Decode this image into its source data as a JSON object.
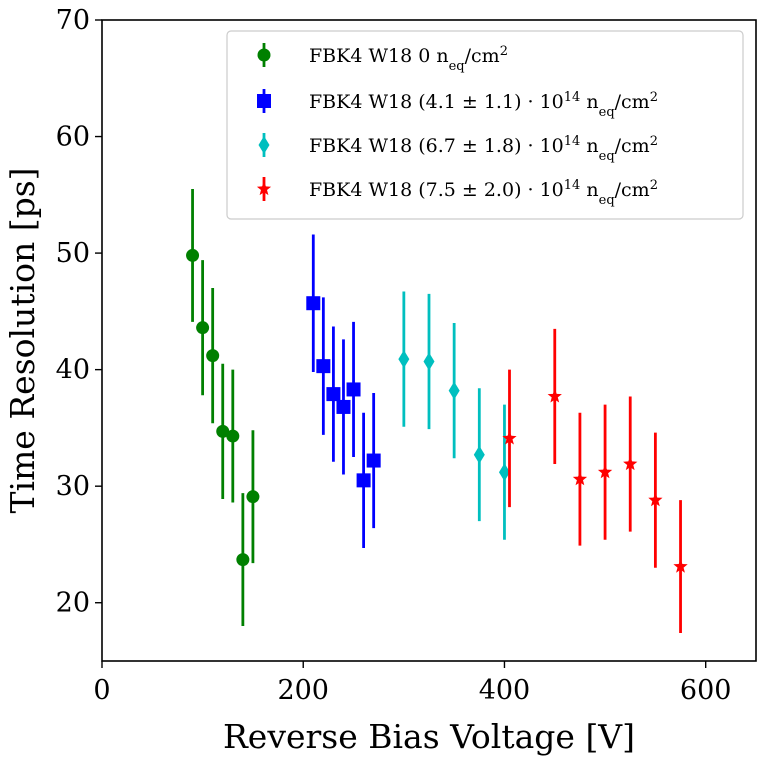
{
  "chart_data": {
    "type": "scatter",
    "title": "",
    "xlabel": "Reverse Bias Voltage [V]",
    "ylabel": "Time Resolution [ps]",
    "xlim": [
      0,
      650
    ],
    "ylim": [
      15,
      70
    ],
    "xticks": [
      0,
      200,
      400,
      600
    ],
    "yticks": [
      20,
      30,
      40,
      50,
      60,
      70
    ],
    "xtick_labels": [
      "0",
      "200",
      "400",
      "600"
    ],
    "ytick_labels": [
      "20",
      "30",
      "40",
      "50",
      "60",
      "70"
    ],
    "grid": false,
    "legend_position": "top-right",
    "series": [
      {
        "name": "FBK4 W18 0 neq/cm2",
        "legend_prefix": "FBK4 W18 ",
        "legend_math": "0",
        "legend_unit": "n",
        "legend_sub": "eq",
        "legend_unit2": "/cm",
        "legend_sup": "2",
        "marker": "circle",
        "color": "#008000",
        "x": [
          90,
          100,
          110,
          120,
          130,
          140,
          150
        ],
        "y": [
          49.8,
          43.6,
          41.2,
          34.7,
          34.3,
          23.7,
          29.1
        ],
        "yerr": [
          5.7,
          5.8,
          5.8,
          5.8,
          5.7,
          5.7,
          5.7
        ]
      },
      {
        "name": "FBK4 W18 (4.1 ± 1.1)·10^14 neq/cm2",
        "legend_prefix": "FBK4 W18 ",
        "legend_math": "(4.1 ± 1.1) · 10",
        "legend_exp": "14",
        "legend_unit": "n",
        "legend_sub": "eq",
        "legend_unit2": "/cm",
        "legend_sup": "2",
        "marker": "square",
        "color": "#0000ff",
        "x": [
          210,
          220,
          230,
          240,
          250,
          260,
          270
        ],
        "y": [
          45.7,
          40.3,
          37.9,
          36.8,
          38.3,
          30.5,
          32.2
        ],
        "yerr": [
          5.9,
          5.9,
          5.8,
          5.8,
          5.8,
          5.8,
          5.8
        ]
      },
      {
        "name": "FBK4 W18 (6.7 ± 1.8)·10^14 neq/cm2",
        "legend_prefix": "FBK4 W18 ",
        "legend_math": "(6.7 ± 1.8) · 10",
        "legend_exp": "14",
        "legend_unit": "n",
        "legend_sub": "eq",
        "legend_unit2": "/cm",
        "legend_sup": "2",
        "marker": "diamond",
        "color": "#00bfbf",
        "x": [
          300,
          325,
          350,
          375,
          400
        ],
        "y": [
          40.9,
          40.7,
          38.2,
          32.7,
          31.2
        ],
        "yerr": [
          5.8,
          5.8,
          5.8,
          5.7,
          5.8
        ]
      },
      {
        "name": "FBK4 W18 (7.5 ± 2.0)·10^14 neq/cm2",
        "legend_prefix": "FBK4 W18 ",
        "legend_math": "(7.5 ± 2.0) · 10",
        "legend_exp": "14",
        "legend_unit": "n",
        "legend_sub": "eq",
        "legend_unit2": "/cm",
        "legend_sup": "2",
        "marker": "star",
        "color": "#ff0000",
        "x": [
          405,
          450,
          475,
          500,
          525,
          550,
          575
        ],
        "y": [
          34.1,
          37.7,
          30.6,
          31.2,
          31.9,
          28.8,
          23.1
        ],
        "yerr": [
          5.9,
          5.8,
          5.7,
          5.8,
          5.8,
          5.8,
          5.7
        ]
      }
    ]
  }
}
